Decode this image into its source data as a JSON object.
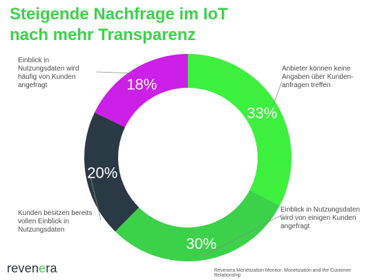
{
  "title_line1": "Steigende Nachfrage im IoT",
  "title_line2": "nach mehr Transparenz",
  "brand": "reven",
  "brand_accent": "e",
  "brand_end": "ra",
  "source": "Revenera Monetization Monitor: Monetization and the Customer Relationship",
  "chart_data": {
    "type": "pie",
    "donut": true,
    "slices": [
      {
        "label": "Anbieter können keine Angaben über Kunden-anfragen treffen",
        "value": 33,
        "display": "33%",
        "color": "#3df03d"
      },
      {
        "label": "Einblick in Nutzungsdaten wird von einigen Kunden angefragt",
        "value": 30,
        "display": "30%",
        "color": "#3bd24a"
      },
      {
        "label": "Kunden besitzen bereits vollen Einblick in Nutzungsdaten",
        "value": 20,
        "display": "20%",
        "color": "#2a3a45"
      },
      {
        "label": "Einblick in Nutzungsdaten wird häufig von Kunden angefragt",
        "value": 18,
        "display": "18%",
        "color": "#cc1fe8"
      }
    ]
  }
}
